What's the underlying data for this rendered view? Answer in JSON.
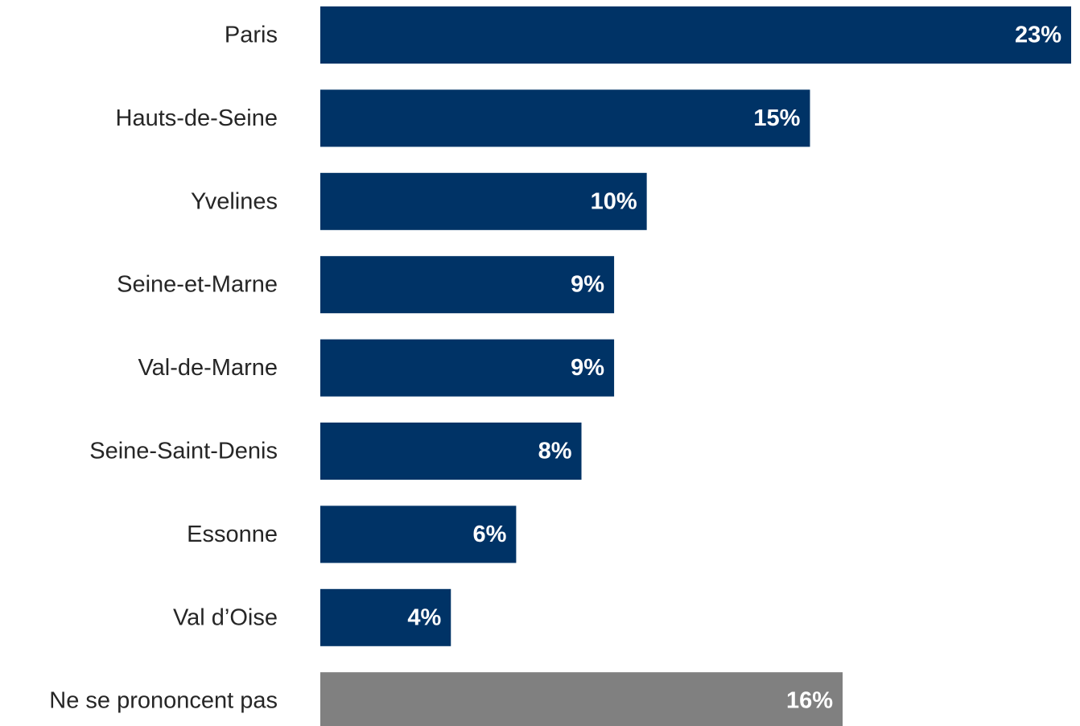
{
  "chart_data": {
    "type": "bar",
    "orientation": "horizontal",
    "title": "",
    "xlabel": "",
    "ylabel": "",
    "grid": false,
    "legend": "none",
    "xlim": [
      0,
      23
    ],
    "categories": [
      "Paris",
      "Hauts-de-Seine",
      "Yvelines",
      "Seine-et-Marne",
      "Val-de-Marne",
      "Seine-Saint-Denis",
      "Essonne",
      "Val d’Oise",
      "Ne se prononcent pas"
    ],
    "values": [
      23,
      15,
      10,
      9,
      9,
      8,
      6,
      4,
      16
    ],
    "value_labels": [
      "23%",
      "15%",
      "10%",
      "9%",
      "9%",
      "8%",
      "6%",
      "4%",
      "16%"
    ],
    "colors": [
      "#003366",
      "#003366",
      "#003366",
      "#003366",
      "#003366",
      "#003366",
      "#003366",
      "#003366",
      "#808080"
    ]
  }
}
